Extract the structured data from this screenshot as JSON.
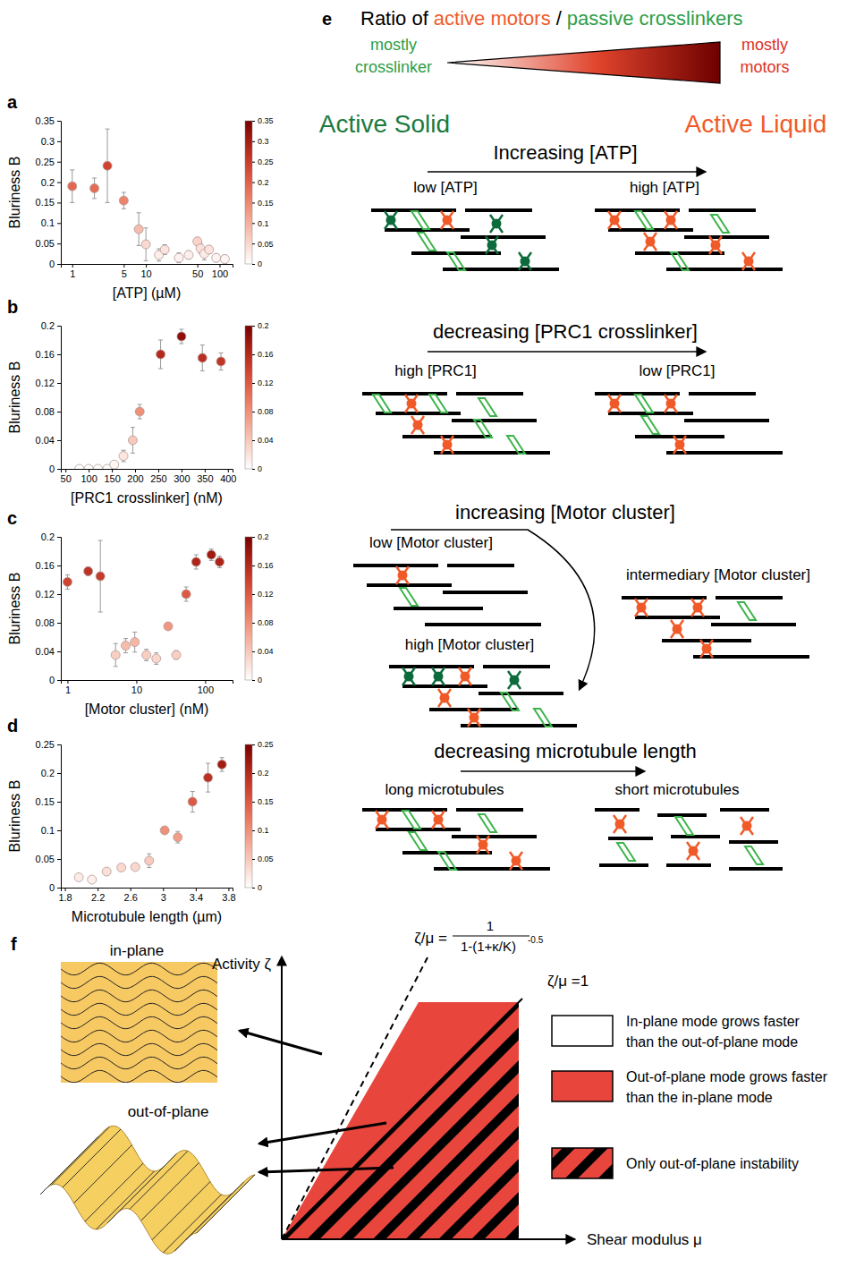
{
  "chart_data": [
    {
      "panel_label": "a",
      "type": "scatter",
      "x": [
        1,
        2,
        3,
        5,
        8,
        10,
        15,
        18,
        28,
        38,
        50,
        55,
        62,
        72,
        90,
        118
      ],
      "values": [
        0.19,
        0.185,
        0.24,
        0.155,
        0.085,
        0.048,
        0.022,
        0.035,
        0.015,
        0.022,
        0.055,
        0.038,
        0.025,
        0.035,
        0.015,
        0.012
      ],
      "errors": [
        0.04,
        0.025,
        0.09,
        0.02,
        0.04,
        0.04,
        0.015,
        0.012,
        0.012,
        0.01,
        0.01,
        0.012,
        0.015,
        0.01,
        0.01,
        0.01
      ],
      "xlabel": "[ATP] (µM)",
      "ylabel": "Bluriness B",
      "xlim": [
        0.7,
        150
      ],
      "ylim": [
        0,
        0.35
      ],
      "xticks": [
        1,
        5,
        10,
        50,
        100
      ],
      "yticks": [
        0,
        0.05,
        0.1,
        0.15,
        0.2,
        0.25,
        0.3,
        0.35
      ],
      "log": "x",
      "colorbar": {
        "range": [
          0,
          0.35
        ],
        "ticks": [
          0,
          0.05,
          0.1,
          0.15,
          0.2,
          0.25,
          0.3,
          0.35
        ]
      }
    },
    {
      "panel_label": "b",
      "type": "scatter",
      "x": [
        80,
        100,
        120,
        140,
        155,
        175,
        195,
        210,
        255,
        300,
        345,
        385
      ],
      "values": [
        0,
        0,
        0,
        0,
        0.006,
        0.018,
        0.04,
        0.08,
        0.16,
        0.185,
        0.155,
        0.15
      ],
      "errors": [
        0.002,
        0.002,
        0.002,
        0.002,
        0.004,
        0.008,
        0.018,
        0.01,
        0.02,
        0.01,
        0.018,
        0.012
      ],
      "xlabel": "[PRC1 crosslinker] (nM)",
      "ylabel": "Bluriness B",
      "xlim": [
        40,
        410
      ],
      "ylim": [
        0,
        0.2
      ],
      "xticks": [
        50,
        100,
        150,
        200,
        250,
        300,
        350,
        400
      ],
      "yticks": [
        0,
        0.04,
        0.08,
        0.12,
        0.16,
        0.2
      ],
      "colorbar": {
        "range": [
          0,
          0.2
        ],
        "ticks": [
          0,
          0.04,
          0.08,
          0.12,
          0.16,
          0.2
        ]
      }
    },
    {
      "panel_label": "c",
      "type": "scatter",
      "x": [
        1,
        2,
        3,
        5,
        7,
        9.5,
        14,
        19.5,
        29,
        38,
        53,
        74,
        123,
        162
      ],
      "values": [
        0.137,
        0.152,
        0.145,
        0.035,
        0.048,
        0.053,
        0.035,
        0.03,
        0.075,
        0.035,
        0.12,
        0.165,
        0.175,
        0.165
      ],
      "errors": [
        0.01,
        0.006,
        0.05,
        0.016,
        0.01,
        0.014,
        0.008,
        0.008,
        0.004,
        0.006,
        0.01,
        0.01,
        0.008,
        0.008
      ],
      "xlabel": "[Motor cluster] (nM)",
      "ylabel": "Bluriness B",
      "xlim": [
        0.8,
        250
      ],
      "ylim": [
        0,
        0.2
      ],
      "xticks": [
        1,
        10,
        100
      ],
      "yticks": [
        0,
        0.04,
        0.08,
        0.12,
        0.16,
        0.2
      ],
      "log": "x",
      "colorbar": {
        "range": [
          0,
          0.2
        ],
        "ticks": [
          0,
          0.04,
          0.08,
          0.12,
          0.16,
          0.2
        ]
      }
    },
    {
      "panel_label": "d",
      "type": "scatter",
      "x": [
        1.97,
        2.13,
        2.31,
        2.49,
        2.66,
        2.83,
        3.02,
        3.18,
        3.36,
        3.55,
        3.72
      ],
      "values": [
        0.018,
        0.014,
        0.028,
        0.035,
        0.036,
        0.047,
        0.1,
        0.088,
        0.15,
        0.192,
        0.215
      ],
      "errors": [
        0.005,
        0.005,
        0.006,
        0.006,
        0.005,
        0.012,
        0.006,
        0.01,
        0.018,
        0.025,
        0.012
      ],
      "xlabel": "Microtubule length (µm)",
      "ylabel": "Bluriness B",
      "xlim": [
        1.75,
        3.85
      ],
      "ylim": [
        0,
        0.25
      ],
      "xticks": [
        1.8,
        2.2,
        2.6,
        3,
        3.4,
        3.8
      ],
      "yticks": [
        0,
        0.05,
        0.1,
        0.15,
        0.2,
        0.25
      ],
      "colorbar": {
        "range": [
          0,
          0.25
        ],
        "ticks": [
          0,
          0.05,
          0.1,
          0.15,
          0.2,
          0.25
        ]
      }
    }
  ],
  "diagram": {
    "panel_e": {
      "panel_label": "e",
      "header": {
        "prefix": "Ratio of",
        "active": "active motors",
        "separator": "/",
        "passive": "passive crosslinkers"
      },
      "left_end": [
        "mostly",
        "crosslinker"
      ],
      "right_end": [
        "mostly",
        "motors"
      ],
      "left_state": "Active Solid",
      "right_state": "Active Liquid",
      "sections": [
        {
          "title": "Increasing [ATP]",
          "labels": [
            "low [ATP]",
            "high [ATP]"
          ]
        },
        {
          "title": "decreasing [PRC1 crosslinker]",
          "labels": [
            "high [PRC1]",
            "low [PRC1]"
          ]
        },
        {
          "title": "increasing [Motor cluster]",
          "labels": [
            "low [Motor cluster]",
            "intermediary [Motor cluster]",
            "high [Motor cluster]"
          ]
        },
        {
          "title": "decreasing microtubule length",
          "labels": [
            "long microtubules",
            "short microtubules"
          ]
        }
      ]
    },
    "panel_f": {
      "panel_label": "f",
      "inset_labels": [
        "in-plane",
        "out-of-plane"
      ],
      "y_axis": "Activity ζ",
      "x_axis": "Shear modulus μ",
      "dashed_line": {
        "lhs": "ζ/μ =",
        "numerator": "1",
        "denominator": "1-(1+κ/K)",
        "exponent": "-0.5"
      },
      "solid_line": "ζ/μ =1",
      "legend_entries": [
        [
          "In-plane mode grows faster",
          "than the out-of-plane mode"
        ],
        [
          "Out-of-plane mode grows faster",
          "than the in-plane mode"
        ],
        [
          "Only out-of-plane instability"
        ]
      ]
    }
  }
}
